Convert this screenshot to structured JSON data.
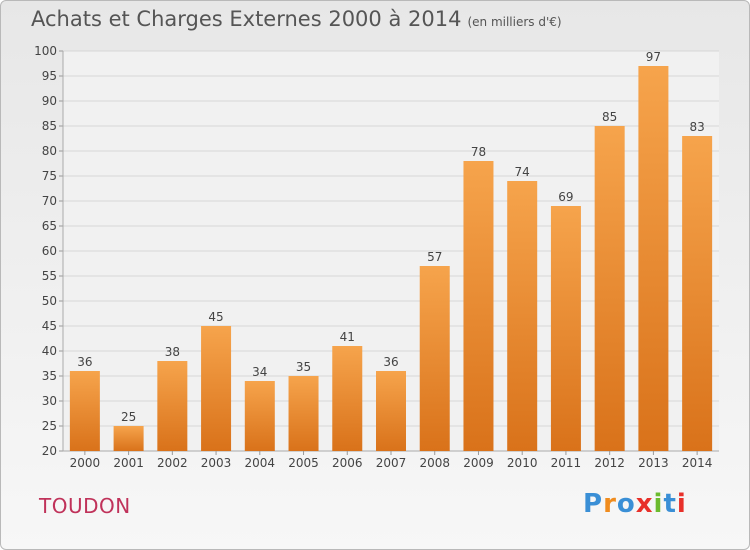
{
  "title": "Achats et Charges Externes 2000 à 2014",
  "subtitle": "(en milliers d'€)",
  "commune": "TOUDON",
  "logo": {
    "text": "Proxiti",
    "colors": [
      "#3a8fd6",
      "#f08c1e",
      "#3a8fd6",
      "#e8302a",
      "#6cbb2e",
      "#3a8fd6",
      "#e8302a"
    ]
  },
  "colors": {
    "bar_top": "#f6a44c",
    "bar_bottom": "#d9721a",
    "grid": "#d6d6d6",
    "commune": "#c0325a"
  },
  "chart_data": {
    "type": "bar",
    "categories": [
      "2000",
      "2001",
      "2002",
      "2003",
      "2004",
      "2005",
      "2006",
      "2007",
      "2008",
      "2009",
      "2010",
      "2011",
      "2012",
      "2013",
      "2014"
    ],
    "values": [
      36,
      25,
      38,
      45,
      34,
      35,
      41,
      36,
      57,
      78,
      74,
      69,
      85,
      97,
      83
    ],
    "ylim": [
      20,
      100
    ],
    "yticks": [
      20,
      25,
      30,
      35,
      40,
      45,
      50,
      55,
      60,
      65,
      70,
      75,
      80,
      85,
      90,
      95,
      100
    ],
    "grid": true,
    "xlabel": "",
    "ylabel": ""
  }
}
